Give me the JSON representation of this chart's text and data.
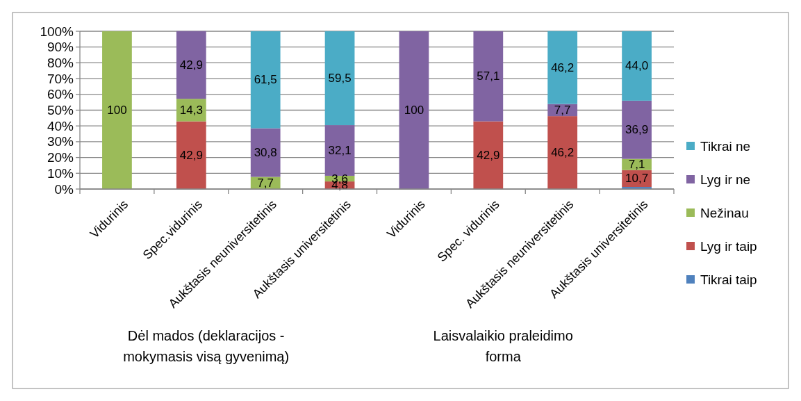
{
  "chart_data": {
    "type": "bar",
    "stacked": true,
    "categories": [
      "Vidurinis",
      "Spec.vidurinis",
      "Aukštasis neuniversitetinis",
      "Aukštasis universitetinis",
      "Vidurinis",
      "Spec. vidurinis",
      "Aukštasis neuniversitetinis",
      "Aukštasis universitetinis"
    ],
    "series": [
      {
        "name": "Tikrai taip",
        "color": "#4f81bd",
        "values": [
          0,
          0,
          0,
          0,
          0,
          0,
          0,
          1.3
        ],
        "value_labels": [
          null,
          null,
          null,
          null,
          null,
          null,
          null,
          null
        ]
      },
      {
        "name": "Lyg ir taip",
        "color": "#c0504d",
        "values": [
          0,
          42.9,
          0,
          4.8,
          0,
          42.9,
          46.2,
          10.7
        ],
        "value_labels": [
          null,
          "42,9",
          null,
          "4,8",
          null,
          "42,9",
          "46,2",
          "10,7"
        ]
      },
      {
        "name": "Nežinau",
        "color": "#9bbb59",
        "values": [
          100,
          14.3,
          7.7,
          3.6,
          0,
          0,
          0,
          7.1
        ],
        "value_labels": [
          "100",
          "14,3",
          "7,7",
          "3,6",
          null,
          null,
          null,
          "7,1"
        ]
      },
      {
        "name": "Lyg ir ne",
        "color": "#8064a2",
        "values": [
          0,
          42.9,
          30.8,
          32.1,
          100,
          57.1,
          7.7,
          36.9
        ],
        "value_labels": [
          null,
          "42,9",
          "30,8",
          "32,1",
          "100",
          "57,1",
          "7,7",
          "36,9"
        ]
      },
      {
        "name": "Tikrai ne",
        "color": "#4bacc6",
        "values": [
          0,
          0,
          61.5,
          59.5,
          0,
          0,
          46.2,
          44.0
        ],
        "value_labels": [
          null,
          null,
          "61,5",
          "59,5",
          null,
          null,
          "46,2",
          "44,0"
        ]
      }
    ],
    "ylim": [
      0,
      100
    ],
    "yticks": [
      {
        "value": 0,
        "label": "0%"
      },
      {
        "value": 10,
        "label": "10%"
      },
      {
        "value": 20,
        "label": "20%"
      },
      {
        "value": 30,
        "label": "30%"
      },
      {
        "value": 40,
        "label": "40%"
      },
      {
        "value": 50,
        "label": "50%"
      },
      {
        "value": 60,
        "label": "60%"
      },
      {
        "value": 70,
        "label": "70%"
      },
      {
        "value": 80,
        "label": "80%"
      },
      {
        "value": 90,
        "label": "90%"
      },
      {
        "value": 100,
        "label": "100%"
      }
    ],
    "grid": "y",
    "legend": "right",
    "annotations": [
      "Dėl mados (deklaracijos - mokymasis visą gyvenimą)",
      "Laisvalaikio praleidimo forma"
    ]
  }
}
